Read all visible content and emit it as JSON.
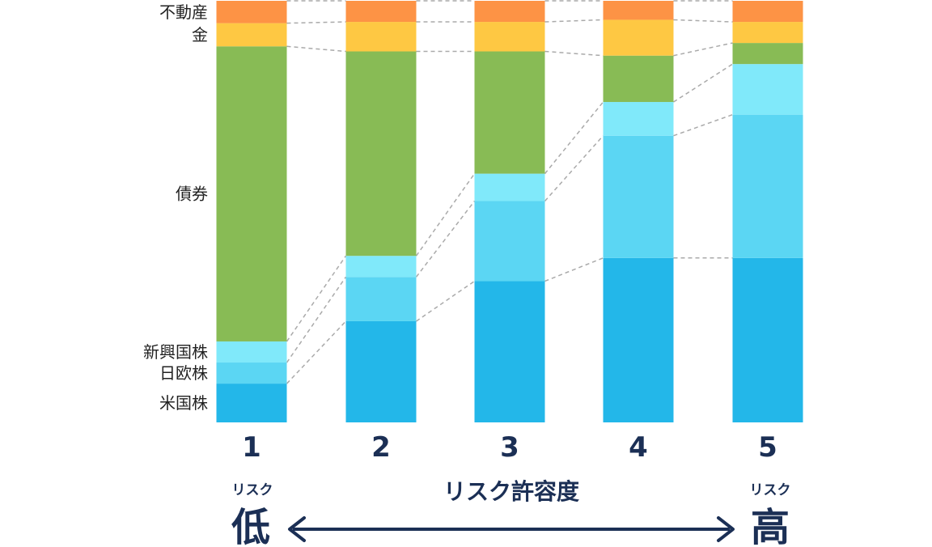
{
  "chart_data": {
    "type": "bar",
    "stacked": true,
    "normalized": true,
    "categories": [
      "1",
      "2",
      "3",
      "4",
      "5"
    ],
    "series": [
      {
        "name": "米国株",
        "color": "#23b7e9",
        "values": [
          9.2,
          24,
          33.5,
          39,
          39
        ]
      },
      {
        "name": "日欧株",
        "color": "#5bd6f3",
        "values": [
          5,
          10.5,
          19,
          29,
          34
        ]
      },
      {
        "name": "新興国株",
        "color": "#80e9fa",
        "values": [
          5,
          5,
          6.5,
          8,
          12
        ]
      },
      {
        "name": "債券",
        "color": "#88bb55",
        "values": [
          70,
          48.5,
          29,
          11,
          5
        ]
      },
      {
        "name": "金",
        "color": "#fec843",
        "values": [
          5.5,
          7,
          7,
          8.5,
          5
        ]
      },
      {
        "name": "不動産",
        "color": "#fd9345",
        "values": [
          5.3,
          5,
          5,
          4.5,
          5
        ]
      }
    ],
    "xlabel": "リスク許容度",
    "ylim": [
      0,
      100
    ],
    "legend": "left",
    "connector_lines": true,
    "connector_color": "#aaaaaa",
    "grid": false
  },
  "axis": {
    "low_small": "リスク",
    "low_big": "低",
    "high_small": "リスク",
    "high_big": "高",
    "arrow_color": "#1b2f55"
  }
}
